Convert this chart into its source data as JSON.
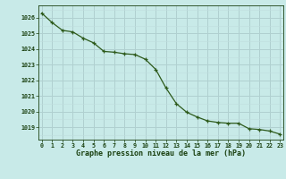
{
  "x": [
    0,
    1,
    2,
    3,
    4,
    5,
    6,
    7,
    8,
    9,
    10,
    11,
    12,
    13,
    14,
    15,
    16,
    17,
    18,
    19,
    20,
    21,
    22,
    23
  ],
  "y": [
    1026.3,
    1025.7,
    1025.2,
    1025.1,
    1024.7,
    1024.4,
    1023.85,
    1023.8,
    1023.7,
    1023.65,
    1023.35,
    1022.7,
    1021.5,
    1020.5,
    1019.95,
    1019.65,
    1019.4,
    1019.3,
    1019.25,
    1019.25,
    1018.9,
    1018.85,
    1018.75,
    1018.55
  ],
  "line_color": "#2d5a1b",
  "marker_color": "#2d5a1b",
  "bg_color": "#c8eae8",
  "grid_major_color": "#b0d0d0",
  "grid_minor_color": "#c0dede",
  "label_color": "#1a4010",
  "xlabel": "Graphe pression niveau de la mer (hPa)",
  "yticks": [
    1019,
    1020,
    1021,
    1022,
    1023,
    1024,
    1025,
    1026
  ],
  "xticks": [
    0,
    1,
    2,
    3,
    4,
    5,
    6,
    7,
    8,
    9,
    10,
    11,
    12,
    13,
    14,
    15,
    16,
    17,
    18,
    19,
    20,
    21,
    22,
    23
  ],
  "ylim": [
    1018.2,
    1026.8
  ],
  "xlim": [
    -0.3,
    23.3
  ]
}
